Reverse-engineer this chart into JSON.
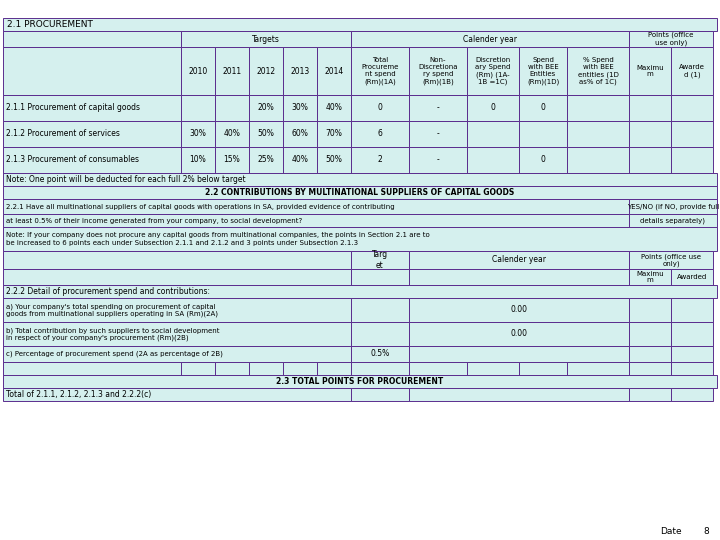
{
  "title": "2.1 PROCUREMENT",
  "bg_color": "#d5f0ee",
  "border_color": "#5b2d8e",
  "text_color": "#000000",
  "font_size": 5.5,
  "footer_text": "Date",
  "footer_num": "8",
  "white": "#ffffff"
}
